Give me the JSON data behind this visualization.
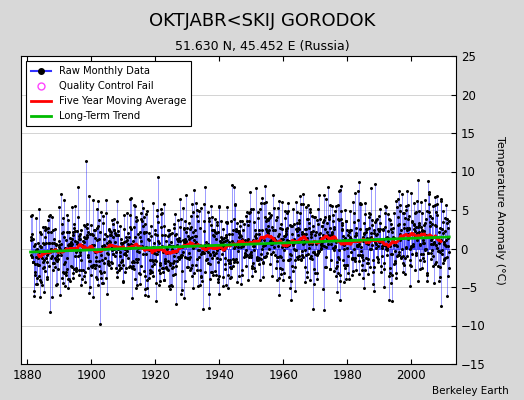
{
  "title": "OKTJABR<SKIJ GORODOK",
  "subtitle": "51.630 N, 45.452 E (Russia)",
  "ylabel": "Temperature Anomaly (°C)",
  "credit": "Berkeley Earth",
  "xlim": [
    1878,
    2014
  ],
  "ylim": [
    -15,
    25
  ],
  "yticks": [
    -15,
    -10,
    -5,
    0,
    5,
    10,
    15,
    20,
    25
  ],
  "xticks": [
    1880,
    1900,
    1920,
    1940,
    1960,
    1980,
    2000
  ],
  "xstart": 1881.0,
  "n_months": 1572,
  "seed": 42,
  "fig_bg": "#d8d8d8",
  "plot_bg": "#ffffff",
  "raw_color": "#3333ff",
  "ma_color": "#ff0000",
  "trend_color": "#00bb00",
  "qc_color": "#ff44ff",
  "title_fontsize": 13,
  "subtitle_fontsize": 9,
  "label_fontsize": 8,
  "tick_fontsize": 8.5
}
